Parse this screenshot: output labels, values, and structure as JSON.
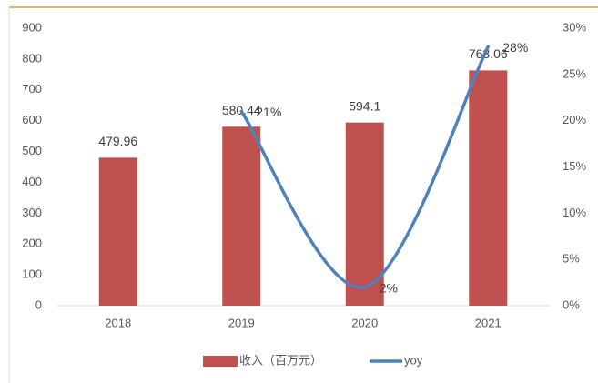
{
  "chart_data": {
    "type": "bar",
    "categories": [
      "2018",
      "2019",
      "2020",
      "2021"
    ],
    "series": [
      {
        "name": "收入（百万元）",
        "type": "bar",
        "color": "#c0504d",
        "values": [
          479.96,
          580.44,
          594.1,
          763.06
        ]
      },
      {
        "name": "yoy",
        "type": "line",
        "axis": "y2",
        "color": "#4f81bd",
        "values": [
          null,
          21,
          2,
          28
        ],
        "value_labels": [
          null,
          "21%",
          "2%",
          "28%"
        ]
      }
    ],
    "ylim": [
      0,
      900
    ],
    "yticks": [
      0,
      100,
      200,
      300,
      400,
      500,
      600,
      700,
      800,
      900
    ],
    "y2lim": [
      0,
      30
    ],
    "y2ticks": [
      {
        "value": 0,
        "label": "0%"
      },
      {
        "value": 5,
        "label": "5%"
      },
      {
        "value": 10,
        "label": "10%"
      },
      {
        "value": 15,
        "label": "15%"
      },
      {
        "value": 20,
        "label": "20%"
      },
      {
        "value": 25,
        "label": "25%"
      },
      {
        "value": 30,
        "label": "30%"
      }
    ],
    "legend": "bottom"
  }
}
